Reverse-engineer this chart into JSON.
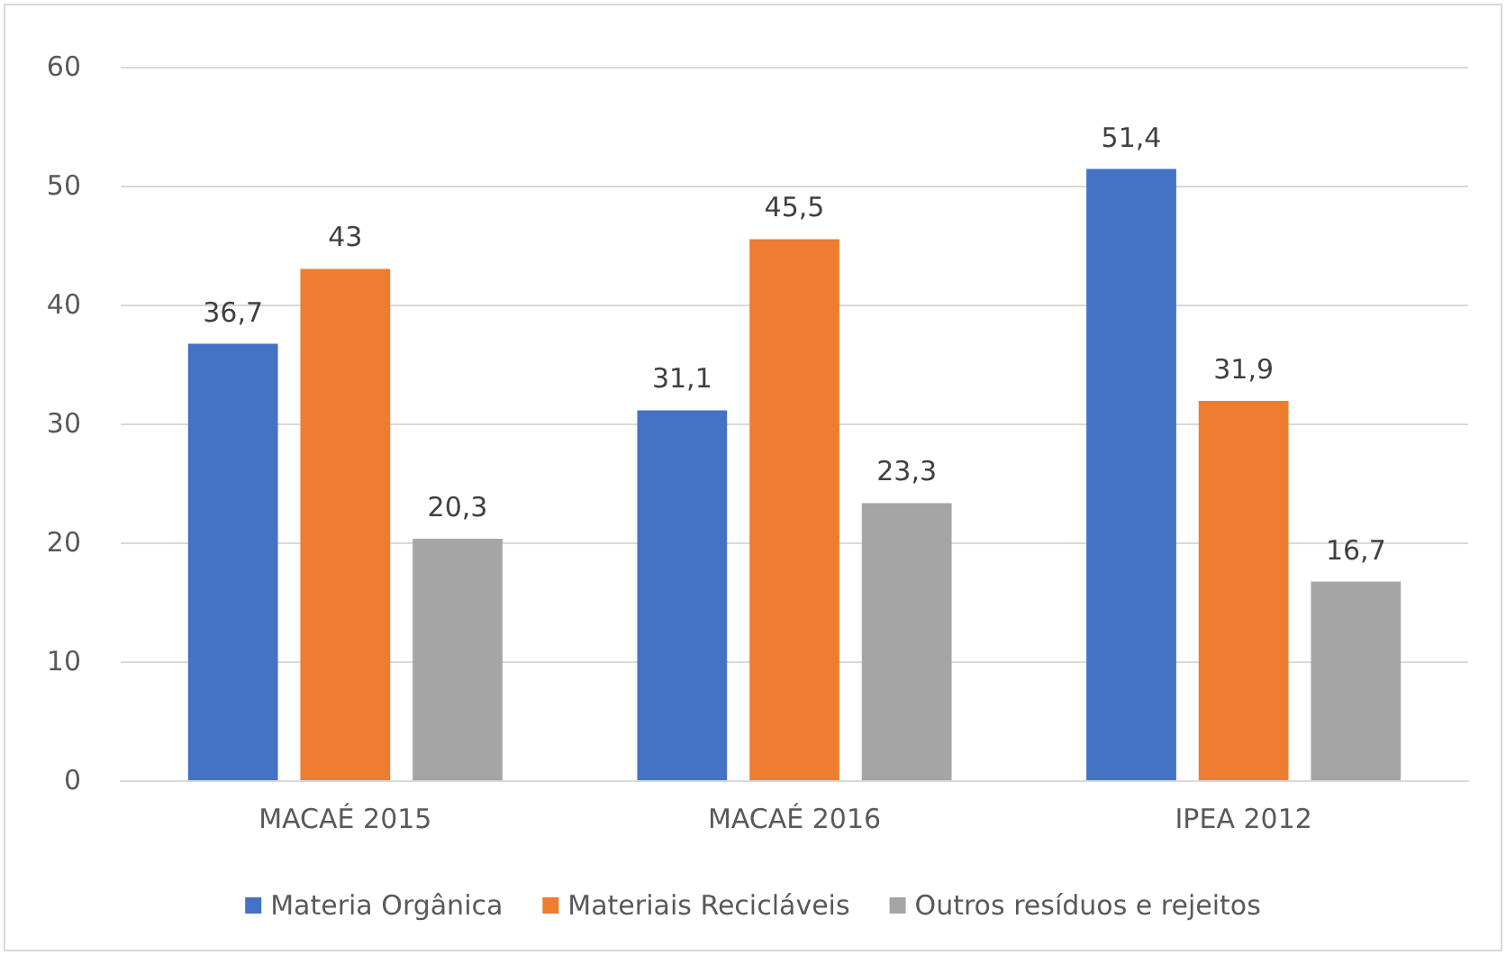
{
  "chart_data": {
    "type": "bar",
    "categories": [
      "MACAÉ 2015",
      "MACAÉ 2016",
      "IPEA 2012"
    ],
    "series": [
      {
        "name": "Materia Orgânica",
        "color": "#4472c4",
        "values": [
          36.7,
          31.1,
          51.4
        ],
        "value_labels": [
          "36,7",
          "31,1",
          "51,4"
        ]
      },
      {
        "name": "Materiais Recicláveis",
        "color": "#ed7d31",
        "values": [
          43,
          45.5,
          31.9
        ],
        "value_labels": [
          "43",
          "45,5",
          "31,9"
        ]
      },
      {
        "name": "Outros resíduos e rejeitos",
        "color": "#a5a5a5",
        "values": [
          20.3,
          23.3,
          16.7
        ],
        "value_labels": [
          "20,3",
          "23,3",
          "16,7"
        ]
      }
    ],
    "ylim": [
      0,
      60
    ],
    "yticks": [
      0,
      10,
      20,
      30,
      40,
      50,
      60
    ],
    "grid": "y",
    "legend": "bottom"
  }
}
